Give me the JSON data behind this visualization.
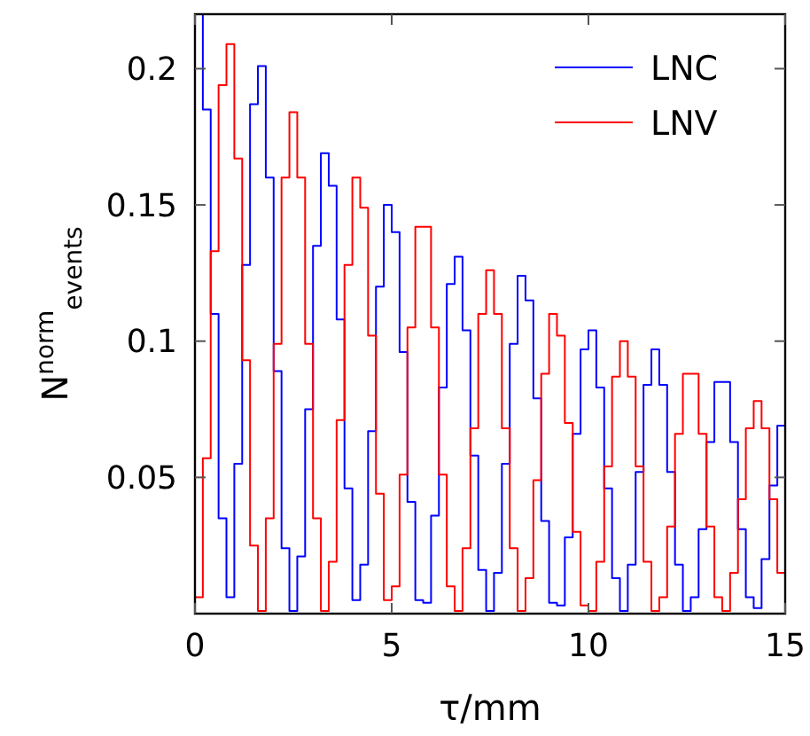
{
  "chart_data": {
    "type": "histogram",
    "xlabel": "τ/mm",
    "ylabel": "N$^{norm}$$_{events}$",
    "bins": [
      0,
      0.2,
      0.4,
      0.6,
      0.8,
      1,
      1.2,
      1.4,
      1.6,
      1.8,
      2,
      2.2,
      2.4,
      2.6,
      2.8,
      3,
      3.2,
      3.4,
      3.6,
      3.8,
      4,
      4.2,
      4.4,
      4.6,
      4.8,
      5,
      5.2,
      5.4,
      5.6,
      5.8,
      6,
      6.2,
      6.4,
      6.6,
      6.8,
      7,
      7.2,
      7.4,
      7.6,
      7.8,
      8,
      8.2,
      8.4,
      8.6,
      8.8,
      9,
      9.2,
      9.4,
      9.6,
      9.8,
      10,
      10.2,
      10.4,
      10.6,
      10.8,
      11,
      11.2,
      11.4,
      11.6,
      11.8,
      12,
      12.2,
      12.4,
      12.6,
      12.8,
      13,
      13.2,
      13.4,
      13.6,
      13.8,
      14,
      14.2,
      14.4,
      14.6,
      14.8,
      15
    ],
    "series": [
      {
        "name": "LNC",
        "color": "#0000ff",
        "values": [
          0.22,
          0.185,
          0.11,
          0.035,
          0.006,
          0.055,
          0.128,
          0.187,
          0.201,
          0.16,
          0.089,
          0.024,
          0.001,
          0.021,
          0.075,
          0.135,
          0.169,
          0.157,
          0.108,
          0.046,
          0.005,
          0.018,
          0.067,
          0.12,
          0.15,
          0.14,
          0.096,
          0.041,
          0.005,
          0.004,
          0.036,
          0.083,
          0.121,
          0.131,
          0.104,
          0.058,
          0.016,
          0.001,
          0.015,
          0.055,
          0.099,
          0.124,
          0.115,
          0.079,
          0.034,
          0.004,
          0.003,
          0.028,
          0.066,
          0.097,
          0.104,
          0.083,
          0.046,
          0.013,
          0.001,
          0.018,
          0.052,
          0.084,
          0.097,
          0.084,
          0.052,
          0.018,
          0.001,
          0.006,
          0.031,
          0.063,
          0.085,
          0.085,
          0.063,
          0.031,
          0.006,
          0.002,
          0.02,
          0.047,
          0.069
        ]
      },
      {
        "name": "LNV",
        "color": "#ff0000",
        "values": [
          0.006,
          0.057,
          0.133,
          0.194,
          0.209,
          0.167,
          0.093,
          0.025,
          0.001,
          0.035,
          0.099,
          0.16,
          0.184,
          0.16,
          0.099,
          0.035,
          0.001,
          0.019,
          0.071,
          0.128,
          0.16,
          0.149,
          0.102,
          0.044,
          0.005,
          0.01,
          0.051,
          0.105,
          0.142,
          0.142,
          0.105,
          0.051,
          0.01,
          0.001,
          0.024,
          0.068,
          0.11,
          0.126,
          0.11,
          0.068,
          0.024,
          0.001,
          0.013,
          0.049,
          0.088,
          0.11,
          0.102,
          0.07,
          0.03,
          0.003,
          0.001,
          0.019,
          0.054,
          0.087,
          0.1,
          0.087,
          0.054,
          0.019,
          0.001,
          0.006,
          0.032,
          0.066,
          0.088,
          0.088,
          0.066,
          0.032,
          0.006,
          0.001,
          0.015,
          0.042,
          0.068,
          0.078,
          0.068,
          0.042,
          0.015
        ]
      }
    ],
    "xlim": [
      0,
      15
    ],
    "xticks": [
      0,
      5,
      10,
      15
    ],
    "ylim": [
      0,
      0.22
    ],
    "yticks": [
      0.05,
      0.1,
      0.15,
      0.2
    ],
    "grid": false,
    "legend": "top right"
  }
}
